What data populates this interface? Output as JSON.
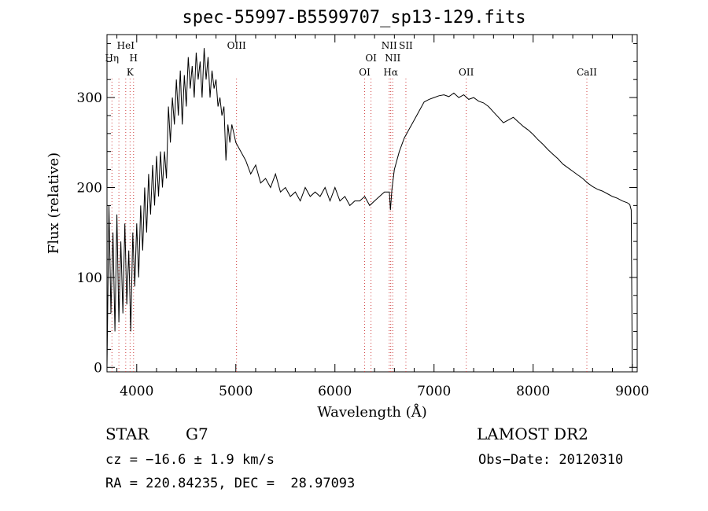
{
  "chart_data": {
    "type": "line",
    "title": "spec-55997-B5599707_sp13-129.fits",
    "xlabel": "Wavelength (Å)",
    "ylabel": "Flux (relative)",
    "xlim": [
      3700,
      9050
    ],
    "ylim": [
      -5,
      370
    ],
    "xticks": [
      4000,
      5000,
      6000,
      7000,
      8000,
      9000
    ],
    "yticks": [
      0,
      100,
      200,
      300
    ],
    "grid": false,
    "series": [
      {
        "x": [
          3700,
          3720,
          3740,
          3760,
          3780,
          3800,
          3820,
          3840,
          3860,
          3880,
          3900,
          3920,
          3940,
          3960,
          3980,
          4000,
          4020,
          4040,
          4060,
          4080,
          4100,
          4120,
          4140,
          4160,
          4180,
          4200,
          4220,
          4240,
          4260,
          4280,
          4300,
          4320,
          4340,
          4360,
          4380,
          4400,
          4420,
          4440,
          4460,
          4480,
          4500,
          4520,
          4540,
          4560,
          4580,
          4600,
          4620,
          4640,
          4660,
          4680,
          4700,
          4720,
          4740,
          4760,
          4780,
          4800,
          4820,
          4840,
          4860,
          4880,
          4900,
          4920,
          4940,
          4960,
          4980,
          5000,
          5050,
          5100,
          5150,
          5200,
          5250,
          5300,
          5350,
          5400,
          5450,
          5500,
          5550,
          5600,
          5650,
          5700,
          5750,
          5800,
          5850,
          5900,
          5950,
          6000,
          6050,
          6100,
          6150,
          6200,
          6250,
          6300,
          6350,
          6400,
          6450,
          6500,
          6550,
          6560,
          6575,
          6600,
          6650,
          6700,
          6750,
          6800,
          6850,
          6900,
          6950,
          7000,
          7050,
          7100,
          7150,
          7200,
          7250,
          7300,
          7350,
          7400,
          7450,
          7500,
          7550,
          7600,
          7650,
          7700,
          7750,
          7800,
          7850,
          7900,
          7950,
          8000,
          8050,
          8100,
          8150,
          8200,
          8250,
          8300,
          8350,
          8400,
          8450,
          8500,
          8550,
          8600,
          8650,
          8700,
          8750,
          8800,
          8850,
          8900,
          8950,
          8975,
          8990,
          9000
        ],
        "y": [
          0,
          180,
          60,
          150,
          40,
          170,
          50,
          140,
          60,
          160,
          70,
          130,
          40,
          150,
          90,
          160,
          100,
          180,
          130,
          200,
          150,
          215,
          170,
          225,
          180,
          235,
          190,
          240,
          200,
          240,
          210,
          290,
          250,
          300,
          270,
          320,
          280,
          330,
          270,
          325,
          290,
          345,
          310,
          335,
          300,
          350,
          320,
          340,
          300,
          355,
          320,
          345,
          300,
          330,
          310,
          320,
          290,
          300,
          280,
          290,
          230,
          270,
          250,
          270,
          260,
          250,
          240,
          230,
          215,
          225,
          205,
          210,
          200,
          215,
          195,
          200,
          190,
          195,
          185,
          200,
          190,
          195,
          190,
          200,
          185,
          200,
          185,
          190,
          180,
          185,
          185,
          190,
          180,
          185,
          190,
          195,
          195,
          175,
          198,
          220,
          240,
          255,
          265,
          275,
          285,
          295,
          298,
          300,
          302,
          303,
          301,
          305,
          300,
          303,
          298,
          300,
          296,
          294,
          290,
          284,
          278,
          272,
          275,
          278,
          273,
          268,
          264,
          259,
          253,
          248,
          242,
          237,
          232,
          226,
          222,
          218,
          214,
          210,
          205,
          201,
          198,
          196,
          193,
          190,
          188,
          185,
          183,
          181,
          175,
          0
        ]
      }
    ],
    "lines": [
      {
        "x": 3750,
        "label": "Hη",
        "row": 2
      },
      {
        "x": 3820,
        "label": "",
        "row": 0
      },
      {
        "x": 3889,
        "label": "HeI",
        "row": 1
      },
      {
        "x": 3933,
        "label": "K",
        "row": 3
      },
      {
        "x": 3968,
        "label": "H",
        "row": 2
      },
      {
        "x": 5007,
        "label": "OIII",
        "row": 1
      },
      {
        "x": 6300,
        "label": "OI",
        "row": 3
      },
      {
        "x": 6364,
        "label": "OI",
        "row": 2
      },
      {
        "x": 6548,
        "label": "NII",
        "row": 1
      },
      {
        "x": 6563,
        "label": "Hα",
        "row": 3
      },
      {
        "x": 6583,
        "label": "NII",
        "row": 2
      },
      {
        "x": 6716,
        "label": "SII",
        "row": 1
      },
      {
        "x": 7325,
        "label": "OII",
        "row": 3
      },
      {
        "x": 8542,
        "label": "CaII",
        "row": 3
      }
    ]
  },
  "info": {
    "object_class": "STAR",
    "subclass": "G7",
    "survey": "LAMOST DR2",
    "cz": "cz = −16.6 ± 1.9 km/s",
    "obs_date": "Obs−Date: 20120310",
    "coords": "RA = 220.84235, DEC =  28.97093"
  },
  "colors": {
    "spectrum": "#000000",
    "line_marker": "#d04040",
    "axis": "#000000"
  }
}
